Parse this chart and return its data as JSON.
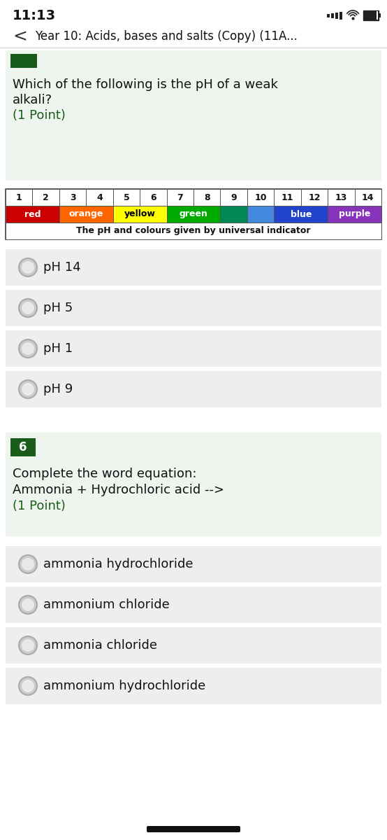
{
  "status_bar_time": "11:13",
  "nav_title": "Year 10: Acids, bases and salts (Copy) (11A...",
  "bg_color": "#ffffff",
  "green_dark": "#1a5c1a",
  "green_light": "#eef5ee",
  "option_bg": "#eeeeee",
  "q5_text_line1": "Which of the following is the pH of a weak",
  "q5_text_line2": "alkali?",
  "q5_point": "(1 Point)",
  "ph_labels": [
    "1",
    "2",
    "3",
    "4",
    "5",
    "6",
    "7",
    "8",
    "9",
    "10",
    "11",
    "12",
    "13",
    "14"
  ],
  "ph_colors": [
    "#cc0000",
    "#cc0000",
    "#ff6600",
    "#ff8800",
    "#ffdd00",
    "#ffff00",
    "#88cc00",
    "#00aa00",
    "#008855",
    "#0077cc",
    "#0044cc",
    "#4422bb",
    "#8833bb",
    "#aa44cc"
  ],
  "ph_color_spans": [
    {
      "start": 0,
      "end": 2,
      "color": "#cc0000",
      "label": "red",
      "text_color": "#ffffff"
    },
    {
      "start": 2,
      "end": 4,
      "color": "#ff6600",
      "label": "orange",
      "text_color": "#ffffff"
    },
    {
      "start": 4,
      "end": 6,
      "color": "#ffff00",
      "label": "yellow",
      "text_color": "#000000"
    },
    {
      "start": 6,
      "end": 8,
      "color": "#00aa00",
      "label": "green",
      "text_color": "#ffffff"
    },
    {
      "start": 8,
      "end": 9,
      "color": "#008855",
      "label": "",
      "text_color": "#ffffff"
    },
    {
      "start": 9,
      "end": 10,
      "color": "#4488dd",
      "label": "",
      "text_color": "#ffffff"
    },
    {
      "start": 10,
      "end": 12,
      "color": "#2244cc",
      "label": "blue",
      "text_color": "#ffffff"
    },
    {
      "start": 12,
      "end": 14,
      "color": "#8833bb",
      "label": "purple",
      "text_color": "#ffffff"
    }
  ],
  "ph_caption": "The pH and colours given by universal indicator",
  "q5_options": [
    "pH 14",
    "pH 5",
    "pH 1",
    "pH 9"
  ],
  "q6_number": "6",
  "q6_text_line1": "Complete the word equation:",
  "q6_text_line2": "Ammonia + Hydrochloric acid -->",
  "q6_point": "(1 Point)",
  "q6_options": [
    "ammonia hydrochloride",
    "ammonium chloride",
    "ammonia chloride",
    "ammonium hydrochloride"
  ]
}
